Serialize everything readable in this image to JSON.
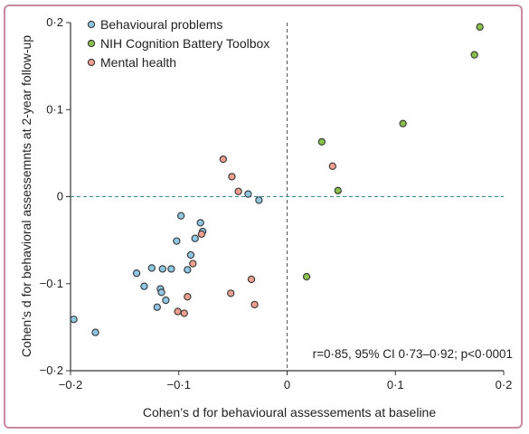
{
  "chart_data": {
    "type": "scatter",
    "xlabel": "Cohen’s d for behavioural assessements at baseline",
    "ylabel": "Cohen’s d for behavioral assessemnts at 2-year follow-up",
    "xlim": [
      -0.2,
      0.2
    ],
    "ylim": [
      -0.2,
      0.2
    ],
    "x_ticks": [
      -0.2,
      -0.1,
      0,
      0.1,
      0.2
    ],
    "y_ticks": [
      -0.2,
      -0.1,
      0,
      0.1,
      0.2
    ],
    "x_tick_labels": [
      "−0·2",
      "−0·1",
      "0",
      "0·1",
      "0·2"
    ],
    "y_tick_labels": [
      "−0·2",
      "−0·1",
      "0",
      "0·1",
      "0·2"
    ],
    "grid": false,
    "reference_lines": "dashed lines at x = 0 and y = 0",
    "legend_position": "top-left",
    "annotation": "r=0·85, 95% CI 0·73–0·92; p<0·0001",
    "series": [
      {
        "name": "Behavioural problems",
        "color": "#8fc7e3",
        "points": [
          {
            "x": -0.197,
            "y": -0.141
          },
          {
            "x": -0.177,
            "y": -0.156
          },
          {
            "x": -0.139,
            "y": -0.088
          },
          {
            "x": -0.132,
            "y": -0.103
          },
          {
            "x": -0.125,
            "y": -0.082
          },
          {
            "x": -0.12,
            "y": -0.127
          },
          {
            "x": -0.117,
            "y": -0.106
          },
          {
            "x": -0.116,
            "y": -0.11
          },
          {
            "x": -0.115,
            "y": -0.083
          },
          {
            "x": -0.112,
            "y": -0.119
          },
          {
            "x": -0.107,
            "y": -0.083
          },
          {
            "x": -0.102,
            "y": -0.051
          },
          {
            "x": -0.098,
            "y": -0.022
          },
          {
            "x": -0.092,
            "y": -0.084
          },
          {
            "x": -0.089,
            "y": -0.067
          },
          {
            "x": -0.085,
            "y": -0.048
          },
          {
            "x": -0.08,
            "y": -0.03
          },
          {
            "x": -0.078,
            "y": -0.04
          },
          {
            "x": -0.036,
            "y": 0.003
          },
          {
            "x": -0.026,
            "y": -0.004
          }
        ]
      },
      {
        "name": "NIH Cognition Battery Toolbox",
        "color": "#8bc04d",
        "points": [
          {
            "x": 0.018,
            "y": -0.092
          },
          {
            "x": 0.032,
            "y": 0.063
          },
          {
            "x": 0.047,
            "y": 0.007
          },
          {
            "x": 0.107,
            "y": 0.084
          },
          {
            "x": 0.173,
            "y": 0.163
          },
          {
            "x": 0.178,
            "y": 0.195
          }
        ]
      },
      {
        "name": "Mental health",
        "color": "#ee9f8f",
        "points": [
          {
            "x": -0.101,
            "y": -0.132
          },
          {
            "x": -0.095,
            "y": -0.134
          },
          {
            "x": -0.092,
            "y": -0.115
          },
          {
            "x": -0.087,
            "y": -0.077
          },
          {
            "x": -0.079,
            "y": -0.043
          },
          {
            "x": -0.059,
            "y": 0.043
          },
          {
            "x": -0.052,
            "y": -0.111
          },
          {
            "x": -0.051,
            "y": 0.023
          },
          {
            "x": -0.045,
            "y": 0.006
          },
          {
            "x": -0.033,
            "y": -0.095
          },
          {
            "x": -0.03,
            "y": -0.124
          },
          {
            "x": 0.042,
            "y": 0.035
          }
        ]
      }
    ]
  }
}
